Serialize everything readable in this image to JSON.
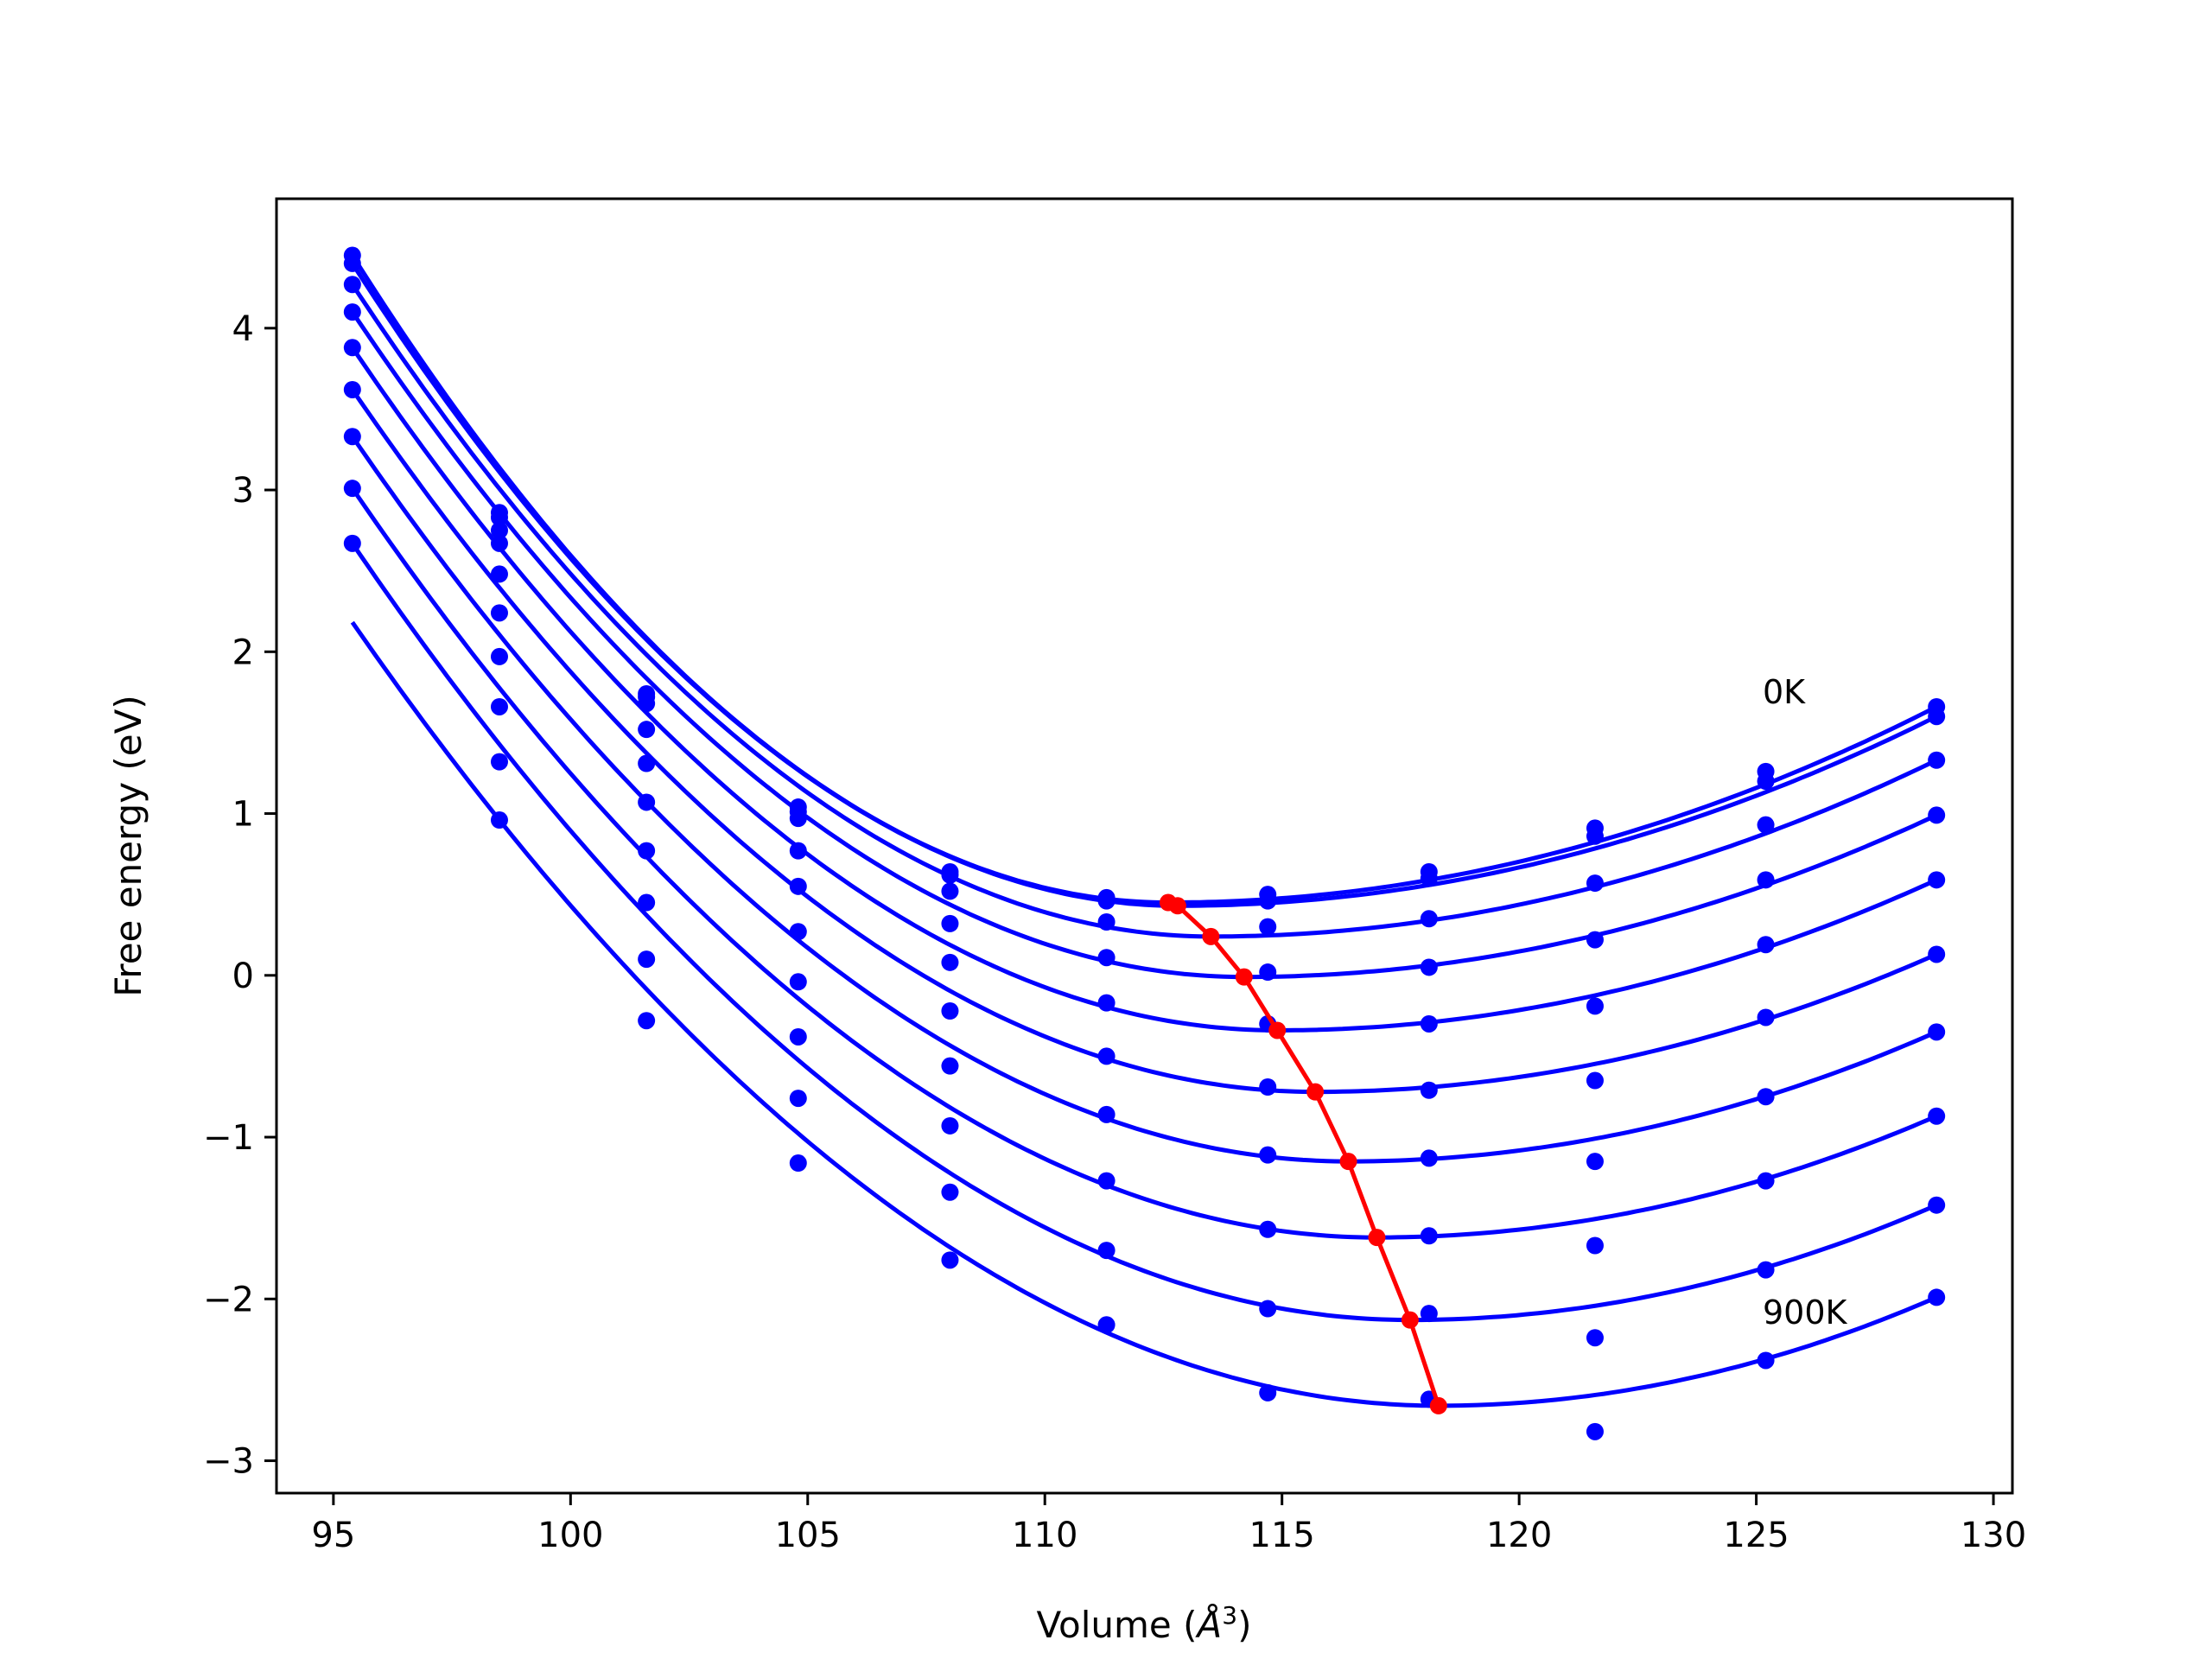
{
  "chart_data": {
    "type": "line",
    "xlabel_main": "Volume (",
    "xlabel_unit": "Å",
    "xlabel_exp": "3",
    "xlabel_close": ")",
    "ylabel": "Free energy (eV)",
    "xlim": [
      93.8,
      130.4
    ],
    "ylim": [
      -3.2,
      4.8
    ],
    "xticks": [
      95,
      100,
      105,
      110,
      115,
      120,
      125,
      130
    ],
    "yticks": [
      -3,
      -2,
      -1,
      0,
      1,
      2,
      3,
      4
    ],
    "xtick_labels": [
      "95",
      "100",
      "105",
      "110",
      "115",
      "120",
      "125",
      "130"
    ],
    "ytick_labels": [
      "−3",
      "−2",
      "−1",
      "0",
      "1",
      "2",
      "3",
      "4"
    ],
    "grid": false,
    "annotations": [
      {
        "text": "0K",
        "x": 125.2,
        "y": 1.72
      },
      {
        "text": "900K",
        "x": 125.2,
        "y": -2.12
      }
    ],
    "colors": {
      "fit": "#0000ff",
      "points": "#0000ff",
      "minima": "#ff0000"
    },
    "volumes": [
      95.4,
      98.5,
      101.6,
      104.8,
      108.0,
      111.3,
      114.7,
      118.1,
      121.6,
      125.2,
      128.8
    ],
    "series": [
      {
        "points": [
          4.45,
          2.86,
          1.74,
          1.04,
          0.64,
          0.48,
          0.5,
          0.64,
          0.91,
          1.26,
          1.66
        ],
        "fit_min": [
          112.6,
          0.45
        ]
      },
      {
        "points": [
          4.4,
          2.83,
          1.72,
          1.01,
          0.62,
          0.46,
          0.46,
          0.6,
          0.86,
          1.2,
          1.6
        ],
        "fit_min": [
          112.8,
          0.43
        ]
      },
      {
        "points": [
          4.27,
          2.75,
          1.68,
          0.97,
          0.52,
          0.33,
          0.3,
          0.35,
          0.57,
          0.93,
          1.33
        ],
        "fit_min": [
          113.5,
          0.24
        ]
      },
      {
        "points": [
          4.1,
          2.67,
          1.52,
          0.77,
          0.32,
          0.11,
          0.02,
          0.05,
          0.22,
          0.59,
          0.99
        ],
        "fit_min": [
          114.2,
          -0.01
        ]
      },
      {
        "points": [
          3.88,
          2.48,
          1.31,
          0.55,
          0.08,
          -0.17,
          -0.3,
          -0.3,
          -0.19,
          0.19,
          0.59
        ],
        "fit_min": [
          114.9,
          -0.34
        ]
      },
      {
        "points": [
          3.62,
          2.24,
          1.07,
          0.27,
          -0.22,
          -0.5,
          -0.69,
          -0.71,
          -0.65,
          -0.26,
          0.13
        ],
        "fit_min": [
          115.7,
          -0.72
        ]
      },
      {
        "points": [
          3.33,
          1.97,
          0.77,
          -0.04,
          -0.56,
          -0.86,
          -1.11,
          -1.13,
          -1.15,
          -0.75,
          -0.35
        ],
        "fit_min": [
          116.4,
          -1.15
        ]
      },
      {
        "points": [
          3.01,
          1.66,
          0.45,
          -0.38,
          -0.93,
          -1.27,
          -1.57,
          -1.61,
          -1.67,
          -1.27,
          -0.87
        ],
        "fit_min": [
          117.0,
          -1.62
        ]
      },
      {
        "points": [
          2.67,
          1.32,
          0.1,
          -0.76,
          -1.34,
          -1.7,
          -2.06,
          -2.09,
          -2.24,
          -1.82,
          -1.42
        ],
        "fit_min": [
          117.7,
          -2.13
        ]
      },
      {
        "points": [
          null,
          0.96,
          -0.28,
          -1.16,
          -1.76,
          -2.16,
          -2.58,
          -2.62,
          -2.82,
          -2.38,
          -1.99
        ],
        "fit_min": [
          118.3,
          -2.66
        ]
      }
    ],
    "minima_line": {
      "x": [
        112.6,
        112.8,
        113.5,
        114.2,
        114.9,
        115.7,
        116.4,
        117.0,
        117.7,
        118.3
      ],
      "y": [
        0.45,
        0.43,
        0.24,
        -0.01,
        -0.34,
        -0.72,
        -1.15,
        -1.62,
        -2.13,
        -2.66
      ]
    }
  }
}
